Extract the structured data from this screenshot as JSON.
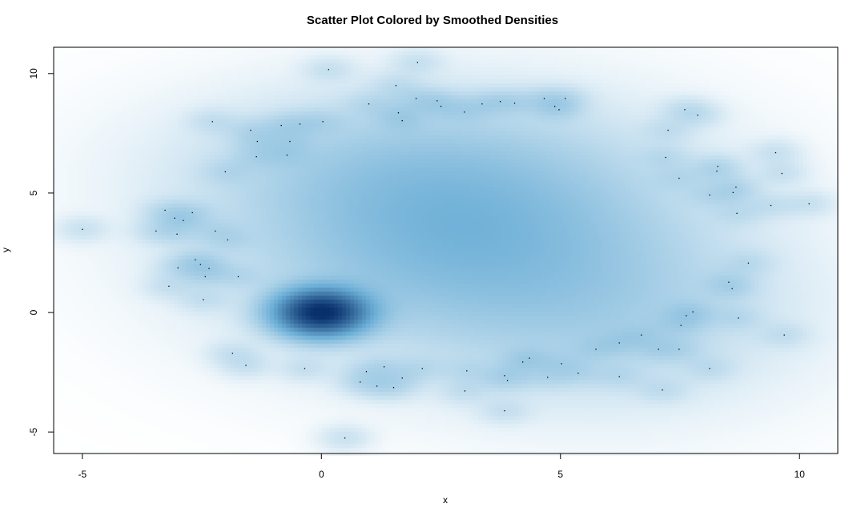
{
  "chart_data": {
    "type": "scatter",
    "style": "smoothed density (smoothScatter) with outlier points",
    "title": "Scatter Plot Colored by Smoothed Densities",
    "xlabel": "x",
    "ylabel": "y",
    "xlim": [
      -5.6,
      10.8
    ],
    "ylim": [
      -5.9,
      11.1
    ],
    "xticks": [
      -5,
      0,
      5,
      10
    ],
    "yticks": [
      -5,
      0,
      5,
      10
    ],
    "xtick_labels": [
      "-5",
      "0",
      "5",
      "10"
    ],
    "ytick_labels": [
      "-5",
      "0",
      "5",
      "10"
    ],
    "grid": false,
    "colors": {
      "low": "#FFFFFF",
      "high": "#08306B",
      "points": "#000000"
    },
    "density_peaks": [
      {
        "x": 0,
        "y": 0,
        "note": "dense core"
      },
      {
        "x": 3,
        "y": 3,
        "note": "broad cloud"
      }
    ],
    "outlier_points": [
      [
        -5,
        3.48
      ],
      [
        0.15,
        10.17
      ],
      [
        2.01,
        10.47
      ],
      [
        1.56,
        9.5
      ],
      [
        0.99,
        8.73
      ],
      [
        1.98,
        8.96
      ],
      [
        2.42,
        8.86
      ],
      [
        2.5,
        8.63
      ],
      [
        2.99,
        8.39
      ],
      [
        3.36,
        8.73
      ],
      [
        3.74,
        8.83
      ],
      [
        4.04,
        8.76
      ],
      [
        4.66,
        8.96
      ],
      [
        4.88,
        8.63
      ],
      [
        4.97,
        8.49
      ],
      [
        5.1,
        8.96
      ],
      [
        1.61,
        8.36
      ],
      [
        1.69,
        8.03
      ],
      [
        0.03,
        7.99
      ],
      [
        -0.45,
        7.89
      ],
      [
        -0.84,
        7.83
      ],
      [
        -2.28,
        7.99
      ],
      [
        -1.48,
        7.63
      ],
      [
        -1.34,
        7.16
      ],
      [
        -0.66,
        7.16
      ],
      [
        -1.36,
        6.52
      ],
      [
        -0.72,
        6.59
      ],
      [
        -2.01,
        5.89
      ],
      [
        -3.27,
        4.28
      ],
      [
        -2.7,
        4.18
      ],
      [
        -3.07,
        3.95
      ],
      [
        -2.89,
        3.85
      ],
      [
        -3.46,
        3.41
      ],
      [
        -3.02,
        3.28
      ],
      [
        -2.22,
        3.41
      ],
      [
        -1.96,
        3.04
      ],
      [
        -2.64,
        2.21
      ],
      [
        -2.53,
        2.01
      ],
      [
        -3.0,
        1.87
      ],
      [
        -2.35,
        1.84
      ],
      [
        -2.43,
        1.5
      ],
      [
        -1.74,
        1.5
      ],
      [
        -3.19,
        1.1
      ],
      [
        -2.47,
        0.54
      ],
      [
        -1.86,
        -1.71
      ],
      [
        -1.58,
        -2.21
      ],
      [
        -0.35,
        -2.34
      ],
      [
        0.94,
        -2.47
      ],
      [
        1.31,
        -2.27
      ],
      [
        0.81,
        -2.91
      ],
      [
        1.16,
        -3.08
      ],
      [
        1.51,
        -3.14
      ],
      [
        1.69,
        -2.74
      ],
      [
        2.11,
        -2.34
      ],
      [
        3.04,
        -2.44
      ],
      [
        3.0,
        -3.28
      ],
      [
        3.83,
        -2.64
      ],
      [
        3.89,
        -2.84
      ],
      [
        4.21,
        -2.07
      ],
      [
        4.35,
        -1.91
      ],
      [
        3.83,
        -4.11
      ],
      [
        4.73,
        -2.71
      ],
      [
        5.02,
        -2.14
      ],
      [
        5.37,
        -2.54
      ],
      [
        5.74,
        -1.54
      ],
      [
        6.23,
        -1.27
      ],
      [
        6.23,
        -2.68
      ],
      [
        6.69,
        -0.94
      ],
      [
        7.05,
        -1.54
      ],
      [
        7.48,
        -1.54
      ],
      [
        7.13,
        -3.24
      ],
      [
        8.12,
        -2.34
      ],
      [
        7.52,
        -0.54
      ],
      [
        7.63,
        -0.13
      ],
      [
        7.77,
        0.03
      ],
      [
        8.72,
        -0.23
      ],
      [
        9.68,
        -0.94
      ],
      [
        8.52,
        1.27
      ],
      [
        8.59,
        1.0
      ],
      [
        8.93,
        2.07
      ],
      [
        8.69,
        4.15
      ],
      [
        9.4,
        4.48
      ],
      [
        10.2,
        4.55
      ],
      [
        8.61,
        5.02
      ],
      [
        8.67,
        5.25
      ],
      [
        8.12,
        4.92
      ],
      [
        8.27,
        5.92
      ],
      [
        8.29,
        6.12
      ],
      [
        9.63,
        5.82
      ],
      [
        9.5,
        6.69
      ],
      [
        7.48,
        5.62
      ],
      [
        7.2,
        6.49
      ],
      [
        7.25,
        7.63
      ],
      [
        7.6,
        8.49
      ],
      [
        7.87,
        8.26
      ],
      [
        0.49,
        -5.25
      ]
    ]
  }
}
